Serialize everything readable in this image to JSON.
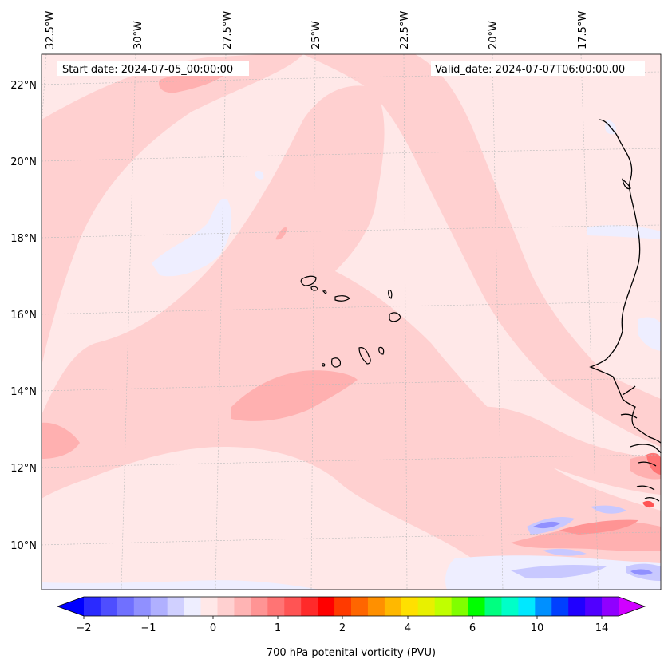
{
  "map": {
    "start_date_label": "Start date: 2024-07-05_00:00:00",
    "valid_date_label": "Valid_date: 2024-07-07T06:00:00.00",
    "lon_labels": [
      "32.5°W",
      "30°W",
      "27.5°W",
      "25°W",
      "22.5°W",
      "20°W",
      "17.5°W"
    ],
    "lat_labels": [
      "22°N",
      "20°N",
      "18°N",
      "16°N",
      "14°N",
      "12°N",
      "10°N"
    ],
    "region": "Cabo Verde islands and West African coast"
  },
  "colorbar": {
    "title": "700 hPa potenital vorticity (PVU)",
    "tick_labels": [
      "−2",
      "−1",
      "0",
      "1",
      "2",
      "4",
      "6",
      "10",
      "14"
    ],
    "colors": [
      "#0000ff",
      "#2a2aff",
      "#4e4eff",
      "#7070ff",
      "#9090ff",
      "#b0b0ff",
      "#d0d0ff",
      "#eeeeff",
      "#ffe8e8",
      "#ffd0d0",
      "#ffb4b4",
      "#ff9494",
      "#ff7474",
      "#ff5454",
      "#ff2a2a",
      "#ff0000",
      "#ff3a00",
      "#ff6600",
      "#ff9000",
      "#ffb800",
      "#ffe000",
      "#e8f000",
      "#c0ff00",
      "#80ff00",
      "#00ff00",
      "#00ff80",
      "#00ffc8",
      "#00e8ff",
      "#0090ff",
      "#0040ff",
      "#2000ff",
      "#5000ff",
      "#9000ff",
      "#d000ff"
    ]
  },
  "colors": {
    "background": "#ffe8e8",
    "light_red": "#ffd0d0",
    "medium_red": "#ffb0b0",
    "light_blue": "#eeeeff",
    "blue": "#c8c8ff",
    "coast": "#000000"
  }
}
